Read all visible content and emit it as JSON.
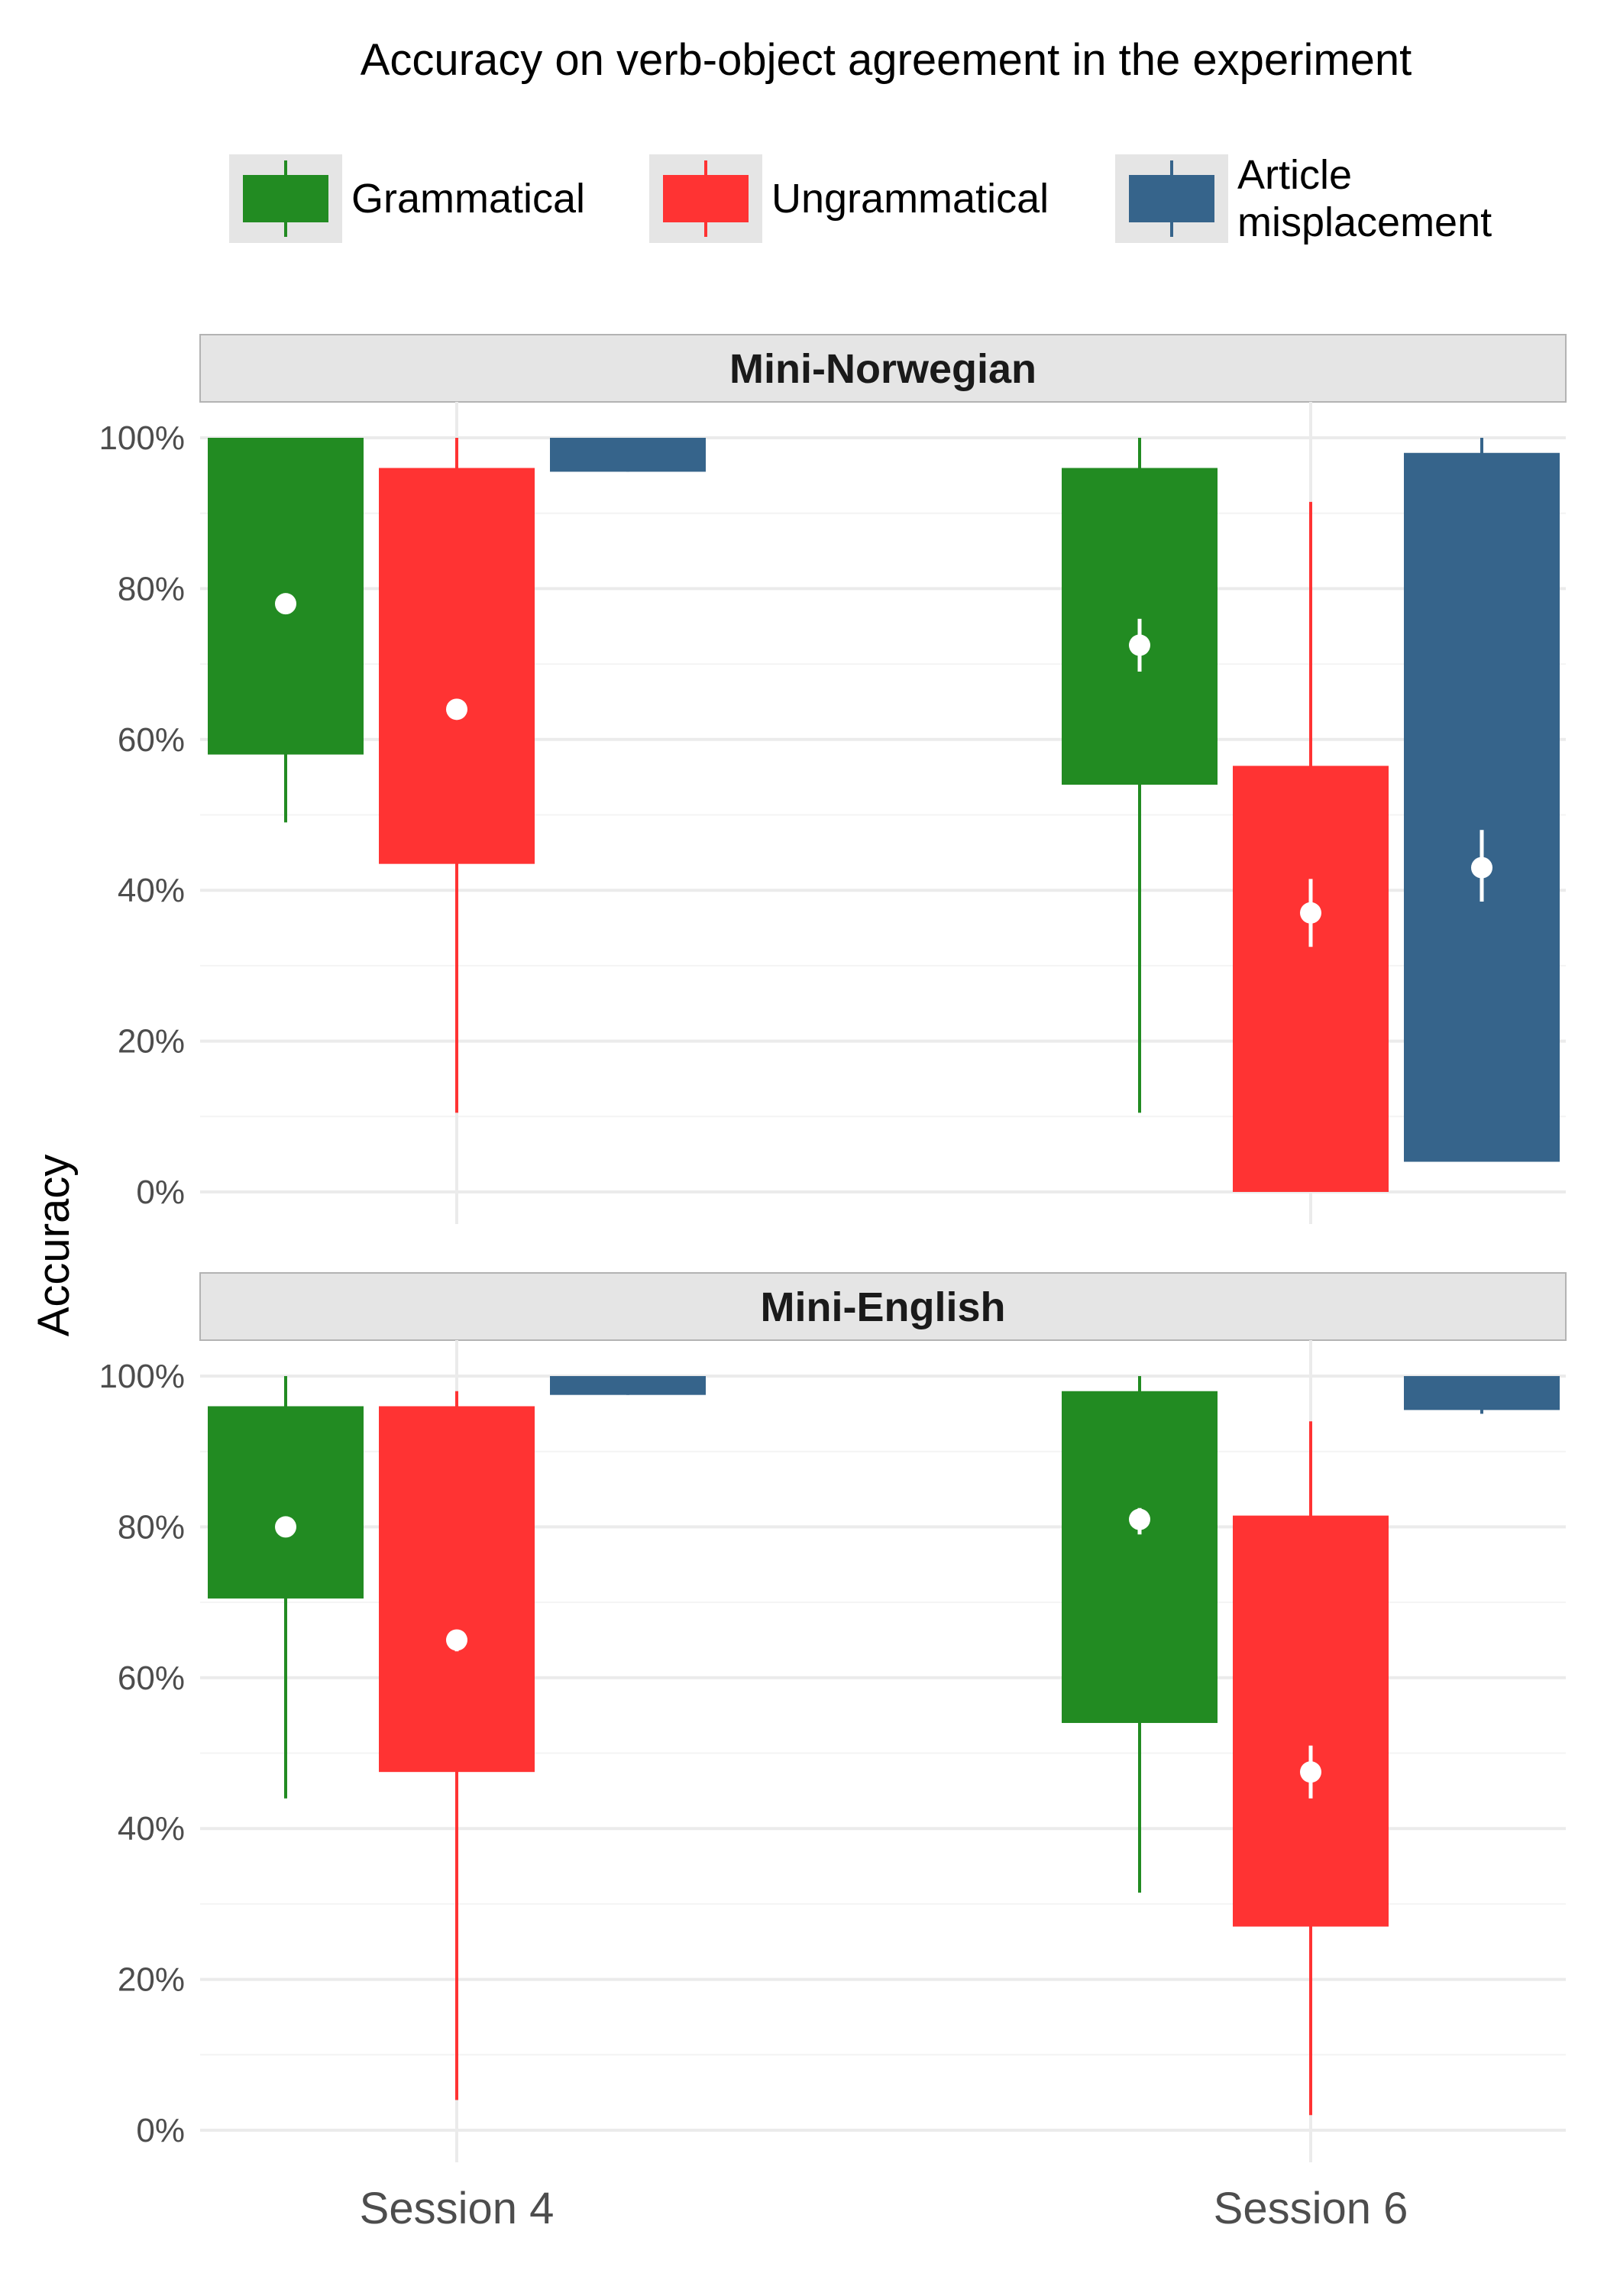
{
  "chart_data": {
    "type": "box",
    "title": "Accuracy on verb-object agreement in the experiment",
    "ylabel": "Accuracy",
    "xlabel": "",
    "ylim": [
      0,
      100
    ],
    "y_ticks": [
      "0%",
      "20%",
      "40%",
      "60%",
      "80%",
      "100%"
    ],
    "categories": [
      "Session 4",
      "Session 6"
    ],
    "legend_position": "top",
    "grid": true,
    "series": [
      {
        "name": "Grammatical",
        "color": "#228B22"
      },
      {
        "name": "Ungrammatical",
        "color": "#FF3333"
      },
      {
        "name": "Article misplacement",
        "color": "#36648B"
      }
    ],
    "panels": [
      {
        "label": "Mini-Norwegian",
        "groups": [
          {
            "category": "Session 4",
            "boxes": [
              {
                "series": "Grammatical",
                "whisker_low": 49,
                "q1": 58,
                "q3": 100,
                "whisker_high": 100,
                "mean": 78,
                "ci_low": 77.5,
                "ci_high": 78.5
              },
              {
                "series": "Ungrammatical",
                "whisker_low": 10.5,
                "q1": 43.5,
                "q3": 96,
                "whisker_high": 100,
                "mean": 64,
                "ci_low": 63.5,
                "ci_high": 64.5
              },
              {
                "series": "Article misplacement",
                "whisker_low": 95.5,
                "q1": 95.5,
                "q3": 100,
                "whisker_high": 100,
                "mean": null,
                "ci_low": null,
                "ci_high": null
              }
            ]
          },
          {
            "category": "Session 6",
            "boxes": [
              {
                "series": "Grammatical",
                "whisker_low": 10.5,
                "q1": 54,
                "q3": 96,
                "whisker_high": 100,
                "mean": 72.5,
                "ci_low": 69,
                "ci_high": 76
              },
              {
                "series": "Ungrammatical",
                "whisker_low": 0,
                "q1": 0,
                "q3": 56.5,
                "whisker_high": 91.5,
                "mean": 37,
                "ci_low": 32.5,
                "ci_high": 41.5
              },
              {
                "series": "Article misplacement",
                "whisker_low": 4,
                "q1": 4,
                "q3": 98,
                "whisker_high": 100,
                "mean": 43,
                "ci_low": 38.5,
                "ci_high": 48
              }
            ]
          }
        ]
      },
      {
        "label": "Mini-English",
        "groups": [
          {
            "category": "Session 4",
            "boxes": [
              {
                "series": "Grammatical",
                "whisker_low": 44,
                "q1": 70.5,
                "q3": 96,
                "whisker_high": 100,
                "mean": 80,
                "ci_low": 79.5,
                "ci_high": 80.5
              },
              {
                "series": "Ungrammatical",
                "whisker_low": 4,
                "q1": 47.5,
                "q3": 96,
                "whisker_high": 98,
                "mean": 65,
                "ci_low": 63.5,
                "ci_high": 66
              },
              {
                "series": "Article misplacement",
                "whisker_low": 97.5,
                "q1": 97.5,
                "q3": 100,
                "whisker_high": 100,
                "mean": null,
                "ci_low": null,
                "ci_high": null
              }
            ]
          },
          {
            "category": "Session 6",
            "boxes": [
              {
                "series": "Grammatical",
                "whisker_low": 31.5,
                "q1": 54,
                "q3": 98,
                "whisker_high": 100,
                "mean": 81,
                "ci_low": 79,
                "ci_high": 82.5
              },
              {
                "series": "Ungrammatical",
                "whisker_low": 2,
                "q1": 27,
                "q3": 81.5,
                "whisker_high": 94,
                "mean": 47.5,
                "ci_low": 44,
                "ci_high": 51
              },
              {
                "series": "Article misplacement",
                "whisker_low": 95,
                "q1": 95.5,
                "q3": 100,
                "whisker_high": 100,
                "mean": null,
                "ci_low": null,
                "ci_high": null
              }
            ]
          }
        ]
      }
    ]
  }
}
